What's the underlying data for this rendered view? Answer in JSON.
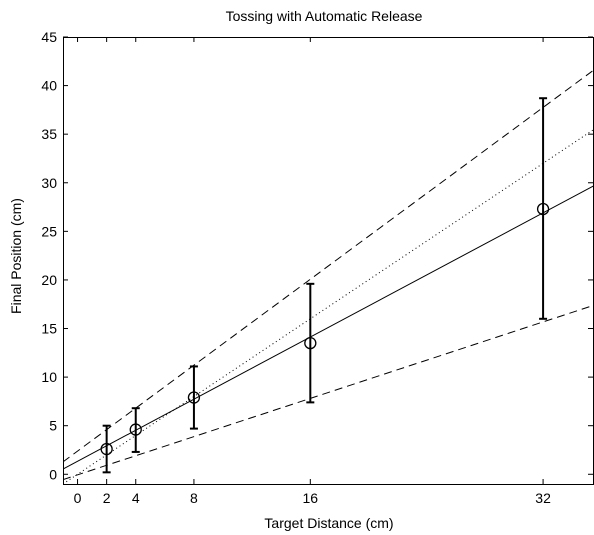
{
  "chart_data": {
    "type": "scatter",
    "title": "Tossing with Automatic Release",
    "xlabel": "Target Distance (cm)",
    "ylabel": "Final Position (cm)",
    "xlim": [
      -1,
      35.5
    ],
    "ylim": [
      -1,
      45
    ],
    "xticks": [
      0,
      2,
      4,
      8,
      16,
      32
    ],
    "yticks": [
      0,
      5,
      10,
      15,
      20,
      25,
      30,
      35,
      40,
      45
    ],
    "grid": false,
    "legend": "none",
    "series": [
      {
        "marker": "circle",
        "errorbars": true,
        "points": [
          {
            "x": 2,
            "y": 2.6,
            "low": 0.2,
            "high": 5.0
          },
          {
            "x": 4,
            "y": 4.6,
            "low": 2.3,
            "high": 6.8
          },
          {
            "x": 8,
            "y": 7.9,
            "low": 4.7,
            "high": 11.1
          },
          {
            "x": 16,
            "y": 13.5,
            "low": 7.4,
            "high": 19.6
          },
          {
            "x": 32,
            "y": 27.3,
            "low": 16.0,
            "high": 38.7
          }
        ]
      }
    ],
    "lines": [
      {
        "style": "solid",
        "x": [
          -1,
          35.5
        ],
        "y": [
          0.54,
          29.7
        ]
      },
      {
        "style": "dotted",
        "x": [
          -1,
          35.5
        ],
        "y": [
          -1.0,
          35.5
        ]
      },
      {
        "style": "dashed",
        "x": [
          -1,
          35.5
        ],
        "y": [
          1.28,
          41.62
        ]
      },
      {
        "style": "dashed",
        "x": [
          -1,
          35.5
        ],
        "y": [
          -0.55,
          17.4
        ]
      }
    ],
    "colors": {
      "ink": "#000000",
      "background": "#ffffff"
    }
  }
}
